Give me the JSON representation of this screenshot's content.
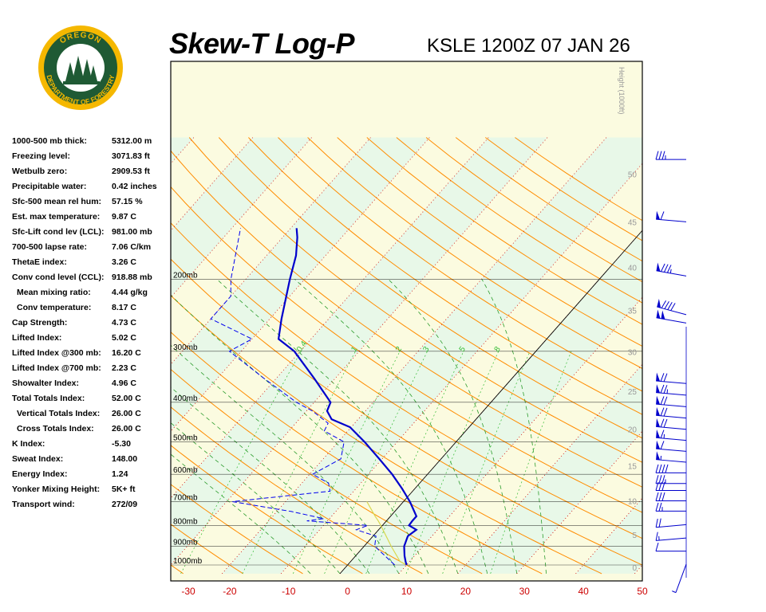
{
  "header": {
    "title": "Skew-T Log-P",
    "station_time": "KSLE 1200Z 07 JAN 26"
  },
  "logo": {
    "top_text": "OREGON",
    "bottom_text": "DEPARTMENT OF FORESTRY",
    "colors": {
      "ring": "#f5b800",
      "inner": "#1f5a34",
      "trees": "#1f5a34"
    }
  },
  "indices": [
    {
      "label": "1000-500 mb thick:",
      "value": "5312.00 m",
      "indent": false
    },
    {
      "label": "Freezing level:",
      "value": "3071.83 ft",
      "indent": false
    },
    {
      "label": "Wetbulb zero:",
      "value": "2909.53 ft",
      "indent": false
    },
    {
      "label": "Precipitable water:",
      "value": "0.42 inches",
      "indent": false
    },
    {
      "label": "Sfc-500 mean rel hum:",
      "value": "57.15 %",
      "indent": false
    },
    {
      "label": "Est. max temperature:",
      "value": "9.87 C",
      "indent": false
    },
    {
      "label": "Sfc-Lift cond lev (LCL):",
      "value": "981.00 mb",
      "indent": false
    },
    {
      "label": "700-500 lapse rate:",
      "value": "7.06 C/km",
      "indent": false
    },
    {
      "label": "ThetaE index:",
      "value": "3.26 C",
      "indent": false
    },
    {
      "label": "Conv cond level (CCL):",
      "value": "918.88 mb",
      "indent": false
    },
    {
      "label": "Mean mixing ratio:",
      "value": "4.44 g/kg",
      "indent": true
    },
    {
      "label": "Conv temperature:",
      "value": "8.17 C",
      "indent": true
    },
    {
      "label": "Cap Strength:",
      "value": "4.73 C",
      "indent": false
    },
    {
      "label": "Lifted Index:",
      "value": "5.02 C",
      "indent": false
    },
    {
      "label": "Lifted Index @300 mb:",
      "value": "16.20 C",
      "indent": false
    },
    {
      "label": "Lifted Index @700 mb:",
      "value": "2.23 C",
      "indent": false
    },
    {
      "label": "Showalter Index:",
      "value": "4.96 C",
      "indent": false
    },
    {
      "label": "Total Totals Index:",
      "value": "52.00 C",
      "indent": false
    },
    {
      "label": "Vertical Totals Index:",
      "value": "26.00 C",
      "indent": true
    },
    {
      "label": "Cross Totals Index:",
      "value": "26.00 C",
      "indent": true
    },
    {
      "label": "K Index:",
      "value": "-5.30",
      "indent": false
    },
    {
      "label": "Sweat Index:",
      "value": "148.00",
      "indent": false
    },
    {
      "label": "Energy Index:",
      "value": "1.24",
      "indent": false
    },
    {
      "label": "Yonker Mixing Height:",
      "value": "5K+ ft",
      "indent": false
    },
    {
      "label": "Transport wind:",
      "value": "272/09",
      "indent": false
    }
  ],
  "chart_data": {
    "type": "skew-t",
    "x_range_c": [
      -30,
      50
    ],
    "x_ticks": [
      -30,
      -20,
      -10,
      0,
      10,
      20,
      30,
      40,
      50
    ],
    "pressure_levels_mb": [
      {
        "p": 1000,
        "label": "1000mb"
      },
      {
        "p": 900,
        "label": "900mb"
      },
      {
        "p": 800,
        "label": "800mb"
      },
      {
        "p": 700,
        "label": "700mb"
      },
      {
        "p": 600,
        "label": "600mb"
      },
      {
        "p": 500,
        "label": "500mb"
      },
      {
        "p": 400,
        "label": "400mb"
      },
      {
        "p": 300,
        "label": "300mb"
      },
      {
        "p": 200,
        "label": "200mb"
      }
    ],
    "height_axis_label": "Height (1000ft)",
    "height_ticks_kft": [
      0,
      5,
      10,
      15,
      20,
      25,
      30,
      35,
      40,
      45,
      50
    ],
    "mixing_ratio_labels": [
      "0.4",
      "1",
      "2",
      "3",
      "5",
      "8"
    ],
    "temperature_profile": [
      {
        "p": 1000,
        "t": 10.0
      },
      {
        "p": 980,
        "t": 9.3
      },
      {
        "p": 950,
        "t": 8.3
      },
      {
        "p": 900,
        "t": 6.8
      },
      {
        "p": 850,
        "t": 5.9
      },
      {
        "p": 820,
        "t": 6.4
      },
      {
        "p": 800,
        "t": 4.5
      },
      {
        "p": 780,
        "t": 4.4
      },
      {
        "p": 760,
        "t": 4.4
      },
      {
        "p": 700,
        "t": 1.1
      },
      {
        "p": 650,
        "t": -2.2
      },
      {
        "p": 600,
        "t": -6.0
      },
      {
        "p": 550,
        "t": -10.5
      },
      {
        "p": 500,
        "t": -15.5
      },
      {
        "p": 460,
        "t": -20.2
      },
      {
        "p": 440,
        "t": -24.5
      },
      {
        "p": 420,
        "t": -26.5
      },
      {
        "p": 400,
        "t": -27.2
      },
      {
        "p": 350,
        "t": -33.5
      },
      {
        "p": 300,
        "t": -41.0
      },
      {
        "p": 280,
        "t": -45.5
      },
      {
        "p": 250,
        "t": -48.0
      },
      {
        "p": 200,
        "t": -52.5
      },
      {
        "p": 175,
        "t": -55.0
      },
      {
        "p": 158,
        "t": -57.5
      },
      {
        "p": 150,
        "t": -59.0
      }
    ],
    "dewpoint_profile": [
      {
        "p": 1000,
        "t": 8.0
      },
      {
        "p": 950,
        "t": 5.0
      },
      {
        "p": 900,
        "t": 1.8
      },
      {
        "p": 850,
        "t": 0.5
      },
      {
        "p": 820,
        "t": -3.8
      },
      {
        "p": 800,
        "t": -2.5
      },
      {
        "p": 780,
        "t": -13.5
      },
      {
        "p": 770,
        "t": -11.0
      },
      {
        "p": 740,
        "t": -17.5
      },
      {
        "p": 700,
        "t": -29.0
      },
      {
        "p": 660,
        "t": -14.0
      },
      {
        "p": 630,
        "t": -15.5
      },
      {
        "p": 600,
        "t": -19.5
      },
      {
        "p": 550,
        "t": -17.0
      },
      {
        "p": 500,
        "t": -19.0
      },
      {
        "p": 470,
        "t": -24.0
      },
      {
        "p": 450,
        "t": -24.5
      },
      {
        "p": 420,
        "t": -29.0
      },
      {
        "p": 400,
        "t": -33.0
      },
      {
        "p": 350,
        "t": -42.0
      },
      {
        "p": 300,
        "t": -52.0
      },
      {
        "p": 280,
        "t": -50.0
      },
      {
        "p": 250,
        "t": -60.0
      },
      {
        "p": 220,
        "t": -60.0
      },
      {
        "p": 200,
        "t": -62.5
      },
      {
        "p": 150,
        "t": -68.5
      }
    ],
    "parcel_profile": [
      {
        "p": 1000,
        "t": 10.0
      },
      {
        "p": 981,
        "t": 8.4
      },
      {
        "p": 900,
        "t": 4.6
      },
      {
        "p": 800,
        "t": -0.3
      },
      {
        "p": 780,
        "t": -1.4
      },
      {
        "p": 760,
        "t": -2.6
      },
      {
        "p": 700,
        "t": -6.2
      }
    ],
    "wind_barbs": [
      {
        "kft": 0.5,
        "dir": 200,
        "spd": 5
      },
      {
        "kft": 2.5,
        "dir": 270,
        "spd": 10
      },
      {
        "kft": 4.5,
        "dir": 265,
        "spd": 15
      },
      {
        "kft": 6.5,
        "dir": 265,
        "spd": 20
      },
      {
        "kft": 8.5,
        "dir": 270,
        "spd": 25
      },
      {
        "kft": 10.0,
        "dir": 270,
        "spd": 30
      },
      {
        "kft": 11.5,
        "dir": 270,
        "spd": 30
      },
      {
        "kft": 12.5,
        "dir": 270,
        "spd": 35
      },
      {
        "kft": 14.0,
        "dir": 270,
        "spd": 40
      },
      {
        "kft": 15.5,
        "dir": 275,
        "spd": 55
      },
      {
        "kft": 17.0,
        "dir": 275,
        "spd": 60
      },
      {
        "kft": 18.5,
        "dir": 275,
        "spd": 65
      },
      {
        "kft": 20.0,
        "dir": 275,
        "spd": 70
      },
      {
        "kft": 21.5,
        "dir": 275,
        "spd": 70
      },
      {
        "kft": 23.0,
        "dir": 275,
        "spd": 70
      },
      {
        "kft": 24.5,
        "dir": 275,
        "spd": 75
      },
      {
        "kft": 26.0,
        "dir": 275,
        "spd": 70
      },
      {
        "kft": 33.5,
        "dir": 280,
        "spd": 100
      },
      {
        "kft": 34.5,
        "dir": 285,
        "spd": 90
      },
      {
        "kft": 39.0,
        "dir": 280,
        "spd": 85
      },
      {
        "kft": 45.0,
        "dir": 275,
        "spd": 60
      },
      {
        "kft": 51.5,
        "dir": 270,
        "spd": 35
      }
    ],
    "colors": {
      "background_light_green": "#e8f8e8",
      "background_light_yellow": "#fbfbe0",
      "isotherm": "#cc0000",
      "dry_adiabat": "#ff8c00",
      "moist_adiabat": "#2c9c2c",
      "mixing_ratio": "#33bb33",
      "isobar": "#000000",
      "temperature": "#0000cc",
      "dewpoint": "#0000ee",
      "parcel": "#d8d850",
      "wind_barb": "#0000cc",
      "tick_labels": "#cc0000",
      "height_labels": "#999999"
    }
  }
}
